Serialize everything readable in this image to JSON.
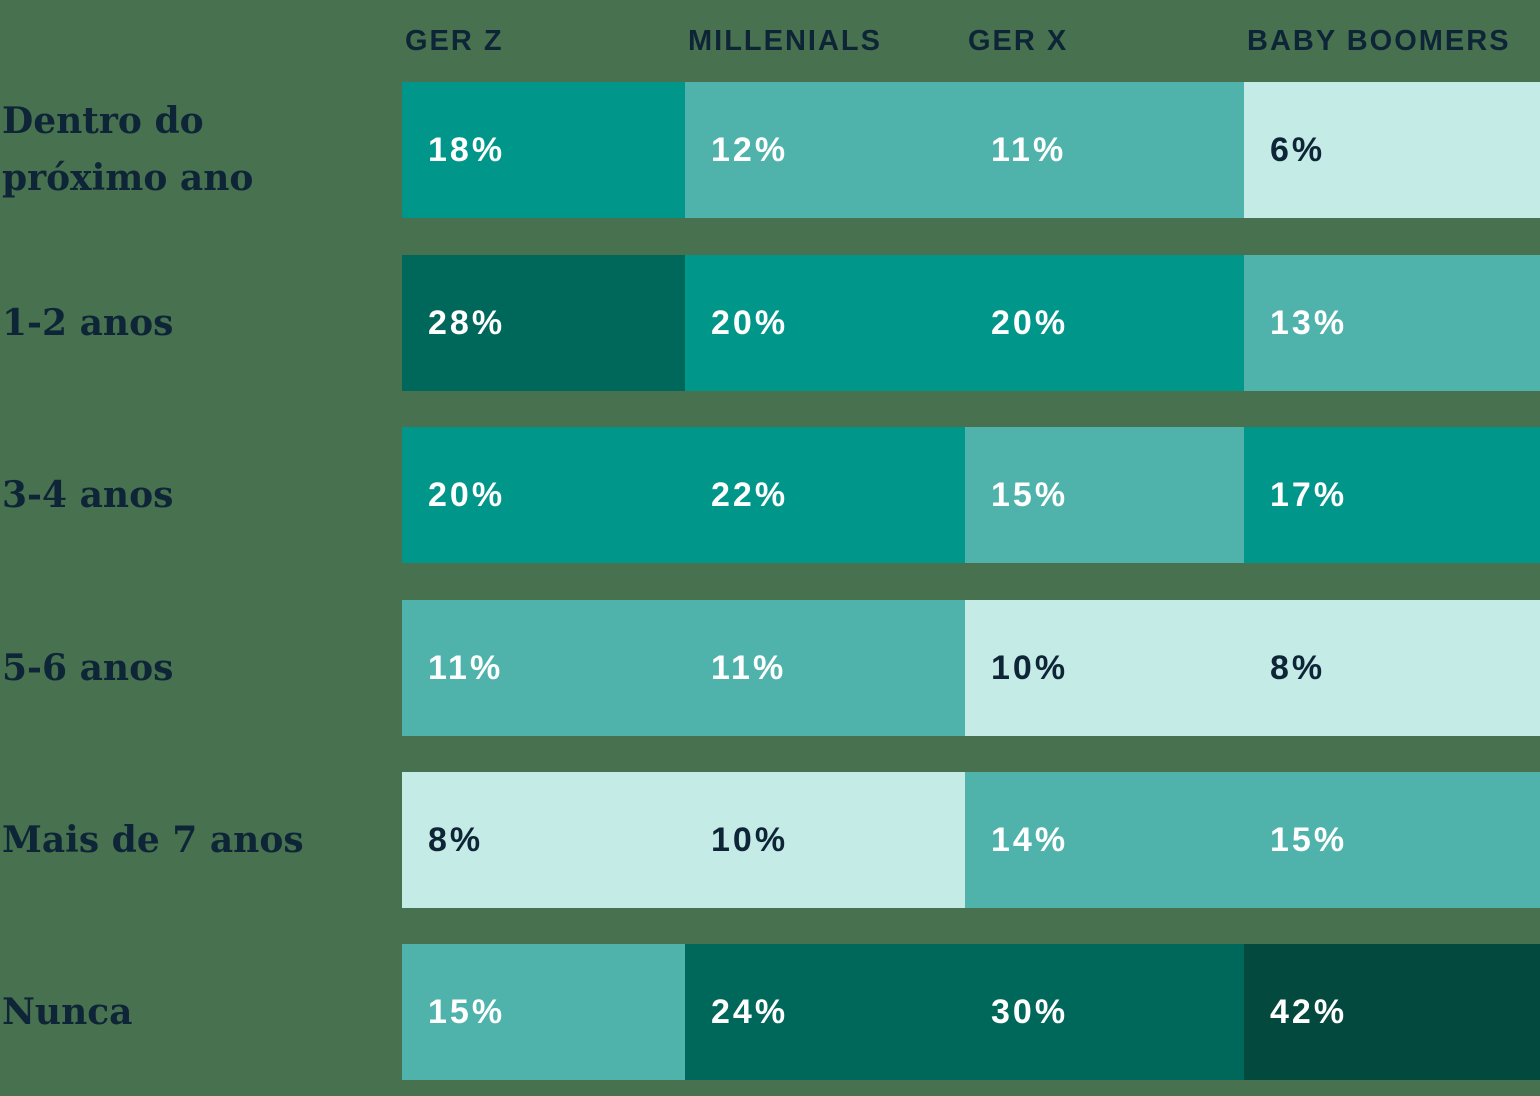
{
  "palette": {
    "background": "#48714F",
    "heading_text": "#0E2537",
    "scale": [
      {
        "range": "0-10",
        "max": 10,
        "bg": "#C5EBE6",
        "text": "#0E2537"
      },
      {
        "range": "11-16",
        "max": 16,
        "bg": "#4FB3AC",
        "text": "#FFFFFF"
      },
      {
        "range": "17-22",
        "max": 22,
        "bg": "#00968A",
        "text": "#FFFFFF"
      },
      {
        "range": "23-33",
        "max": 33,
        "bg": "#00675B",
        "text": "#FFFFFF"
      },
      {
        "range": "34+",
        "max": 100,
        "bg": "#03493E",
        "text": "#FFFFFF"
      }
    ]
  },
  "chart_data": {
    "type": "heatmap",
    "unit": "%",
    "columns": [
      "GER Z",
      "MILLENIALS",
      "GER X",
      "BABY BOOMERS"
    ],
    "categories": [
      "Dentro do próximo ano",
      "1-2 anos",
      "3-4 anos",
      "5-6 anos",
      "Mais de 7 anos",
      "Nunca"
    ],
    "rows": [
      {
        "label": "Dentro do próximo ano",
        "label_lines": [
          "Dentro do",
          "próximo ano"
        ],
        "values": [
          18,
          12,
          11,
          6
        ]
      },
      {
        "label": "1-2 anos",
        "label_lines": [
          "1-2 anos"
        ],
        "values": [
          28,
          20,
          20,
          13
        ]
      },
      {
        "label": "3-4 anos",
        "label_lines": [
          "3-4 anos"
        ],
        "values": [
          20,
          22,
          15,
          17
        ]
      },
      {
        "label": "5-6 anos",
        "label_lines": [
          "5-6 anos"
        ],
        "values": [
          11,
          11,
          10,
          8
        ]
      },
      {
        "label": "Mais de 7 anos",
        "label_lines": [
          "Mais de 7 anos"
        ],
        "values": [
          8,
          10,
          14,
          15
        ]
      },
      {
        "label": "Nunca",
        "label_lines": [
          "Nunca"
        ],
        "values": [
          15,
          24,
          30,
          42
        ]
      }
    ]
  }
}
